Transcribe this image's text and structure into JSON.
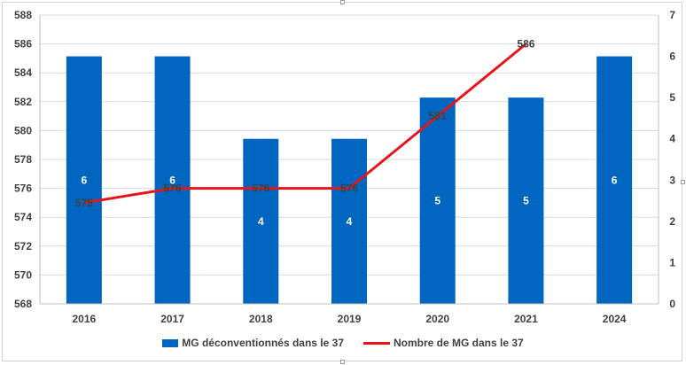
{
  "colors": {
    "bar": "#0066C0",
    "line": "#E8141B",
    "grid": "#d9d9d9",
    "axis": "#bfbfbf"
  },
  "chart_data": {
    "type": "bar",
    "categories": [
      "2016",
      "2017",
      "2018",
      "2019",
      "2020",
      "2021",
      "2024"
    ],
    "series": [
      {
        "name": "MG déconventionnés dans le 37",
        "type": "bar",
        "axis": "right",
        "values": [
          6,
          6,
          4,
          4,
          5,
          5,
          6
        ],
        "data_labels": [
          "6",
          "6",
          "4",
          "4",
          "5",
          "5",
          "6"
        ]
      },
      {
        "name": "Nombre de MG dans le 37",
        "type": "line",
        "axis": "left",
        "values": [
          575,
          576,
          576,
          576,
          581,
          586,
          null
        ],
        "data_labels": [
          "575",
          "576",
          "576",
          "576",
          "581",
          "586",
          ""
        ]
      }
    ],
    "y_left": {
      "min": 568,
      "max": 588,
      "step": 2,
      "ticks": [
        "568",
        "570",
        "572",
        "574",
        "576",
        "578",
        "580",
        "582",
        "584",
        "586",
        "588"
      ]
    },
    "y_right": {
      "min": 0,
      "max": 7,
      "step": 1,
      "ticks": [
        "0",
        "1",
        "2",
        "3",
        "4",
        "5",
        "6",
        "7"
      ]
    },
    "grid": true,
    "legend": "bottom",
    "legend_labels": [
      "MG déconventionnés dans le 37",
      "Nombre de MG dans le 37"
    ]
  }
}
